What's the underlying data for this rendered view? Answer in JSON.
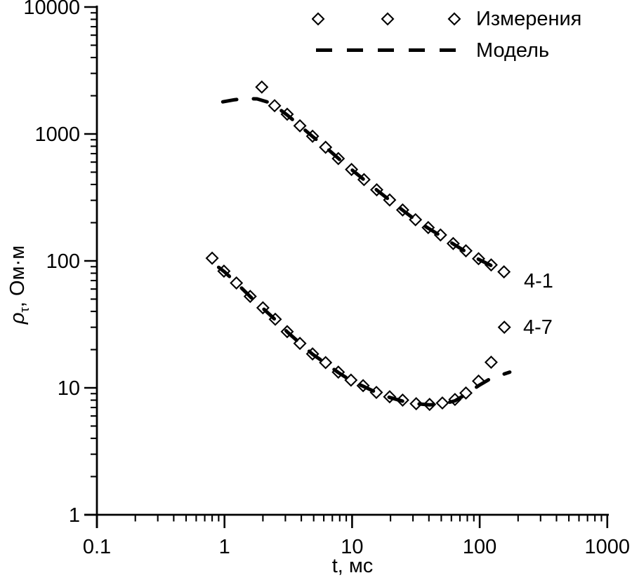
{
  "figure": {
    "background": "#ffffff",
    "ink": "#000000"
  },
  "legend": {
    "measurements_label": "Измерения",
    "model_label": "Модель"
  },
  "axes": {
    "xlabel": "t, мс",
    "ylabel_rho": "ρ",
    "ylabel_sub": "τ",
    "ylabel_rest": ", Ом·м"
  },
  "series_labels": {
    "upper": "4-1",
    "lower": "4-7"
  },
  "chart_data": {
    "type": "scatter",
    "title": "",
    "xlabel": "t, мс",
    "ylabel": "ρτ, Ом·м",
    "xscale": "log",
    "yscale": "log",
    "xlim": [
      0.1,
      1000
    ],
    "ylim": [
      1,
      10000
    ],
    "grid": false,
    "legend_position": "top-right",
    "x_ticks": [
      0.1,
      1,
      10,
      100,
      1000
    ],
    "y_ticks": [
      1,
      10,
      100,
      1000,
      10000
    ],
    "legend": [
      {
        "label": "Измерения",
        "style": "open-diamond-marker"
      },
      {
        "label": "Модель",
        "style": "thick-dashed-line"
      }
    ],
    "annotations": [
      {
        "text": "4-1",
        "t": 230,
        "rho": 70
      },
      {
        "text": "4-7",
        "t": 230,
        "rho": 30
      }
    ],
    "series": [
      {
        "name": "4-1 Измерения",
        "style": "markers",
        "marker": "open-diamond",
        "x": [
          1.96,
          2.47,
          3.1,
          3.9,
          4.9,
          6.2,
          7.8,
          9.9,
          12.4,
          15.6,
          19.7,
          24.9,
          31.4,
          39.5,
          49.3,
          62,
          78,
          98,
          123,
          155
        ],
        "y": [
          2340,
          1670,
          1430,
          1160,
          960,
          785,
          640,
          525,
          437,
          363,
          302,
          252,
          211,
          183,
          160,
          137,
          120,
          104,
          93,
          82
        ]
      },
      {
        "name": "4-1 Модель",
        "style": "dashed-line",
        "x": [
          0.97,
          1.2,
          1.5,
          1.8,
          2.2,
          2.6,
          3.1,
          3.9,
          4.9,
          6.2,
          7.8,
          9.9,
          12.4,
          15.6,
          19.7,
          24.9,
          31.4,
          39.5,
          49.3,
          62,
          78,
          98,
          123,
          145,
          160
        ],
        "y": [
          1790,
          1860,
          1900,
          1890,
          1780,
          1610,
          1410,
          1160,
          955,
          785,
          642,
          525,
          436,
          362,
          301,
          251,
          210,
          181,
          158,
          136,
          118,
          103,
          92,
          87,
          88
        ]
      },
      {
        "name": "4-7 Измерения",
        "style": "markers",
        "marker": "open-diamond",
        "x": [
          0.8,
          0.99,
          1.24,
          1.59,
          2.0,
          2.5,
          3.1,
          3.9,
          4.9,
          6.2,
          7.8,
          9.8,
          12.2,
          15.5,
          19.7,
          24.9,
          31.8,
          40.5,
          51,
          64,
          78,
          98,
          123,
          156
        ],
        "y": [
          105,
          83,
          67,
          52.5,
          42.7,
          34.7,
          27.7,
          22.4,
          18.5,
          15.8,
          13.3,
          11.5,
          10.4,
          9.2,
          8.5,
          8.0,
          7.5,
          7.4,
          7.6,
          8.1,
          9.1,
          11.3,
          15.9,
          30
        ]
      },
      {
        "name": "4-7 Модель",
        "style": "dashed-line",
        "x": [
          0.9,
          1.0,
          1.25,
          1.6,
          2.0,
          2.5,
          3.1,
          3.9,
          4.9,
          6.2,
          7.8,
          9.8,
          12.2,
          15.5,
          19.7,
          24.9,
          31.8,
          40.5,
          51,
          64,
          78,
          98,
          123,
          150,
          172
        ],
        "y": [
          89,
          82,
          66.5,
          52,
          42.3,
          34.4,
          27.6,
          22.5,
          18.4,
          15.6,
          13.2,
          11.4,
          10.3,
          9.2,
          8.4,
          7.85,
          7.5,
          7.35,
          7.45,
          7.9,
          8.9,
          10.4,
          11.9,
          12.7,
          13.3
        ]
      }
    ]
  }
}
